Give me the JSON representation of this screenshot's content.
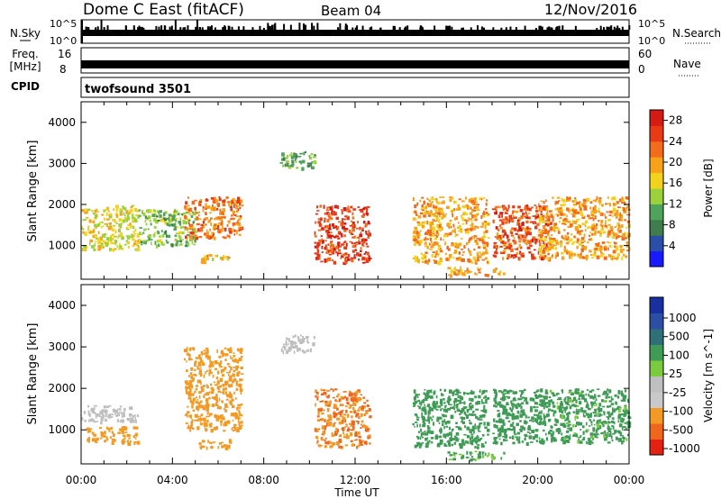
{
  "header": {
    "station": "Dome C East (fitACF)",
    "beam": "Beam 04",
    "date": "12/Nov/2016"
  },
  "noise_panel": {
    "left_label": "N.Sky",
    "right_label": "N.Search",
    "left_ticks": [
      "10^5",
      "10^0"
    ],
    "right_ticks": [
      "10^5",
      "10^0"
    ]
  },
  "freq_panel": {
    "left_label_line1": "Freq.",
    "left_label_line2": "[MHz]",
    "left_ticks": [
      "16",
      "8"
    ],
    "right_label": "Nave",
    "right_ticks": [
      "60",
      "0"
    ]
  },
  "cpid_panel": {
    "label": "CPID",
    "value": "twofsound 3501"
  },
  "x_axis": {
    "label": "Time UT",
    "ticks": [
      "00:00",
      "04:00",
      "08:00",
      "12:00",
      "16:00",
      "20:00",
      "00:00"
    ]
  },
  "colors": {
    "power": [
      "#1a1aff",
      "#2b4fa8",
      "#3f7d4e",
      "#4fa35a",
      "#9bd13b",
      "#f2d21f",
      "#f7a21a",
      "#f36c1b",
      "#e83a15",
      "#d41b14"
    ],
    "velocity": [
      "#e32214",
      "#f0661d",
      "#f39a25",
      "#c9c9c9",
      "#bfbfbf",
      "#7ccb3f",
      "#3f9b55",
      "#2f6f78",
      "#2d4fa3",
      "#1a2fa0"
    ]
  },
  "chart_data": [
    {
      "type": "heatmap",
      "name": "power-panel",
      "title": "",
      "xlabel": "Time UT",
      "ylabel": "Slant Range [km]",
      "xlim": [
        0,
        24
      ],
      "ylim": [
        180,
        4500
      ],
      "yticks": [
        "1000",
        "2000",
        "3000",
        "4000"
      ],
      "colorbar": {
        "label": "Power [dB]",
        "ticks": [
          "4",
          "8",
          "12",
          "16",
          "20",
          "24",
          "28"
        ],
        "range": [
          0,
          30
        ]
      },
      "regions": [
        {
          "x": [
            0.0,
            2.5
          ],
          "y": [
            900,
            2000
          ],
          "value": 16
        },
        {
          "x": [
            2.5,
            5.0
          ],
          "y": [
            1000,
            1900
          ],
          "value": 12
        },
        {
          "x": [
            4.5,
            7.0
          ],
          "y": [
            1200,
            2200
          ],
          "value": 22
        },
        {
          "x": [
            5.0,
            6.5
          ],
          "y": [
            600,
            800
          ],
          "value": 18
        },
        {
          "x": [
            8.7,
            10.2
          ],
          "y": [
            2900,
            3300
          ],
          "value": 10
        },
        {
          "x": [
            10.2,
            12.6
          ],
          "y": [
            600,
            2000
          ],
          "value": 26
        },
        {
          "x": [
            14.5,
            17.8
          ],
          "y": [
            600,
            2200
          ],
          "value": 20
        },
        {
          "x": [
            16.0,
            18.5
          ],
          "y": [
            300,
            500
          ],
          "value": 20
        },
        {
          "x": [
            18.0,
            20.5
          ],
          "y": [
            700,
            2000
          ],
          "value": 24
        },
        {
          "x": [
            20.0,
            24.0
          ],
          "y": [
            700,
            2200
          ],
          "value": 20
        }
      ]
    },
    {
      "type": "heatmap",
      "name": "velocity-panel",
      "title": "",
      "xlabel": "Time UT",
      "ylabel": "Slant Range [km]",
      "xlim": [
        0,
        24
      ],
      "ylim": [
        180,
        4500
      ],
      "yticks": [
        "1000",
        "2000",
        "3000",
        "4000"
      ],
      "colorbar": {
        "label": "Velocity [m s^-1]",
        "ticks": [
          "1000",
          "500",
          "100",
          "25",
          "-25",
          "-100",
          "-500",
          "-1000"
        ]
      },
      "regions": [
        {
          "x": [
            0.0,
            2.5
          ],
          "y": [
            1200,
            1600
          ],
          "value": 0
        },
        {
          "x": [
            0.2,
            2.5
          ],
          "y": [
            700,
            1100
          ],
          "value": -300
        },
        {
          "x": [
            4.5,
            7.0
          ],
          "y": [
            1000,
            3000
          ],
          "value": -300
        },
        {
          "x": [
            5.0,
            6.5
          ],
          "y": [
            600,
            800
          ],
          "value": -200
        },
        {
          "x": [
            8.7,
            10.2
          ],
          "y": [
            2900,
            3300
          ],
          "value": 0
        },
        {
          "x": [
            10.2,
            12.6
          ],
          "y": [
            600,
            2000
          ],
          "value": -500
        },
        {
          "x": [
            16.0,
            18.5
          ],
          "y": [
            300,
            500
          ],
          "value": 100
        },
        {
          "x": [
            14.5,
            17.8
          ],
          "y": [
            600,
            2000
          ],
          "value": 300
        },
        {
          "x": [
            18.0,
            20.5
          ],
          "y": [
            700,
            2000
          ],
          "value": 300
        },
        {
          "x": [
            20.5,
            24.0
          ],
          "y": [
            700,
            2000
          ],
          "value": 150
        }
      ]
    }
  ]
}
